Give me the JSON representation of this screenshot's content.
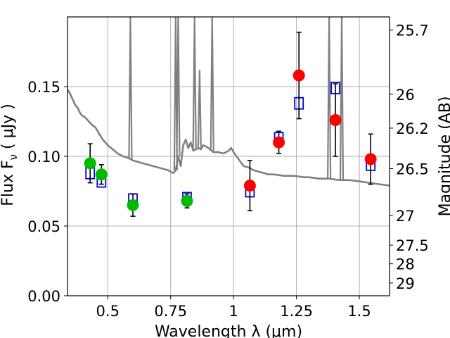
{
  "chart_data": {
    "type": "scatter",
    "title": "",
    "xlabel": "Wavelength  λ (μm)",
    "ylabel": "Flux  F",
    "ylabel_sub": "ν",
    "ylabel_unit": " ( μJy )",
    "y2label": "Magnitude (AB)",
    "xlim": [
      0.34,
      1.62
    ],
    "ylim": [
      0.0,
      0.2
    ],
    "grid": true,
    "x_ticks": [
      {
        "value": 0.5,
        "label": "0.5"
      },
      {
        "value": 0.75,
        "label": "0.75"
      },
      {
        "value": 1.0,
        "label": "1"
      },
      {
        "value": 1.25,
        "label": "1.25"
      },
      {
        "value": 1.5,
        "label": "1.5"
      }
    ],
    "y_ticks": [
      {
        "value": 0.0,
        "label": "0.00"
      },
      {
        "value": 0.05,
        "label": "0.05"
      },
      {
        "value": 0.1,
        "label": "0.10"
      },
      {
        "value": 0.15,
        "label": "0.15"
      }
    ],
    "y2_ticks": [
      {
        "value": 25.7,
        "label": "25.7"
      },
      {
        "value": 26.0,
        "label": "26"
      },
      {
        "value": 26.2,
        "label": "26.2"
      },
      {
        "value": 26.5,
        "label": "26.5"
      },
      {
        "value": 27.0,
        "label": "27"
      },
      {
        "value": 27.5,
        "label": "27.5"
      },
      {
        "value": 28.0,
        "label": "28"
      },
      {
        "value": 29.0,
        "label": "29"
      }
    ],
    "colors": {
      "template": "#808080",
      "model": "#0000dd",
      "optical": "#00bb00",
      "nir": "#ff0000",
      "errorbar": "#000000",
      "grid": "#b0b0b0"
    },
    "series": [
      {
        "kind": "template-sed",
        "points": [
          [
            0.34,
            0.148
          ],
          [
            0.35,
            0.145
          ],
          [
            0.36,
            0.141
          ],
          [
            0.37,
            0.137
          ],
          [
            0.38,
            0.135
          ],
          [
            0.39,
            0.131
          ],
          [
            0.4,
            0.129
          ],
          [
            0.41,
            0.128
          ],
          [
            0.42,
            0.126
          ],
          [
            0.43,
            0.124
          ],
          [
            0.44,
            0.122
          ],
          [
            0.45,
            0.121
          ],
          [
            0.46,
            0.118
          ],
          [
            0.47,
            0.115
          ],
          [
            0.48,
            0.112
          ],
          [
            0.5,
            0.108
          ],
          [
            0.52,
            0.105
          ],
          [
            0.54,
            0.102
          ],
          [
            0.56,
            0.1
          ],
          [
            0.58,
            0.099
          ],
          [
            0.6,
            0.097
          ],
          [
            0.62,
            0.096
          ],
          [
            0.64,
            0.095
          ],
          [
            0.66,
            0.094
          ],
          [
            0.68,
            0.093
          ],
          [
            0.7,
            0.092
          ],
          [
            0.72,
            0.091
          ],
          [
            0.74,
            0.09
          ],
          [
            0.76,
            0.088
          ],
          [
            0.77,
            0.09
          ],
          [
            0.78,
            0.1
          ],
          [
            0.79,
            0.093
          ],
          [
            0.8,
            0.108
          ],
          [
            0.81,
            0.112
          ],
          [
            0.82,
            0.106
          ],
          [
            0.83,
            0.11
          ],
          [
            0.84,
            0.104
          ],
          [
            0.86,
            0.106
          ],
          [
            0.87,
            0.105
          ],
          [
            0.88,
            0.108
          ],
          [
            0.89,
            0.107
          ],
          [
            0.9,
            0.106
          ],
          [
            0.92,
            0.103
          ],
          [
            0.94,
            0.103
          ],
          [
            0.96,
            0.102
          ],
          [
            0.98,
            0.104
          ],
          [
            0.99,
            0.106
          ],
          [
            1.0,
            0.103
          ],
          [
            1.02,
            0.098
          ],
          [
            1.04,
            0.093
          ],
          [
            1.06,
            0.092
          ],
          [
            1.08,
            0.09
          ],
          [
            1.1,
            0.089
          ],
          [
            1.12,
            0.088
          ],
          [
            1.14,
            0.087
          ],
          [
            1.16,
            0.087
          ],
          [
            1.2,
            0.086
          ],
          [
            1.24,
            0.086
          ],
          [
            1.28,
            0.085
          ],
          [
            1.3,
            0.085
          ],
          [
            1.34,
            0.084
          ],
          [
            1.38,
            0.084
          ],
          [
            1.42,
            0.083
          ],
          [
            1.46,
            0.083
          ],
          [
            1.5,
            0.082
          ],
          [
            1.54,
            0.081
          ],
          [
            1.58,
            0.08
          ],
          [
            1.62,
            0.079
          ]
        ],
        "spikes": [
          {
            "x": 0.59,
            "y": 0.2
          },
          {
            "x": 0.77,
            "y": 0.2
          },
          {
            "x": 0.78,
            "y": 0.2
          },
          {
            "x": 0.845,
            "y": 0.2
          },
          {
            "x": 0.865,
            "y": 0.162
          },
          {
            "x": 0.915,
            "y": 0.2
          },
          {
            "x": 1.38,
            "y": 0.2
          },
          {
            "x": 1.43,
            "y": 0.2
          }
        ]
      },
      {
        "kind": "model-photometry",
        "marker": "open-square",
        "points": [
          {
            "x": 0.43,
            "y": 0.088
          },
          {
            "x": 0.475,
            "y": 0.082
          },
          {
            "x": 0.6,
            "y": 0.069
          },
          {
            "x": 0.815,
            "y": 0.07
          },
          {
            "x": 1.065,
            "y": 0.075
          },
          {
            "x": 1.18,
            "y": 0.113
          },
          {
            "x": 1.26,
            "y": 0.138
          },
          {
            "x": 1.405,
            "y": 0.149
          },
          {
            "x": 1.545,
            "y": 0.094
          }
        ]
      },
      {
        "kind": "observed-optical",
        "marker": "filled-circle",
        "points": [
          {
            "x": 0.43,
            "y": 0.095,
            "err": 0.014
          },
          {
            "x": 0.475,
            "y": 0.087,
            "err": 0.007
          },
          {
            "x": 0.6,
            "y": 0.065,
            "err": 0.008
          },
          {
            "x": 0.815,
            "y": 0.068,
            "err": 0.005
          }
        ]
      },
      {
        "kind": "observed-nir",
        "marker": "filled-circle",
        "points": [
          {
            "x": 1.065,
            "y": 0.079,
            "err": 0.018
          },
          {
            "x": 1.18,
            "y": 0.11,
            "err": 0.008
          },
          {
            "x": 1.26,
            "y": 0.158,
            "err": 0.031
          },
          {
            "x": 1.405,
            "y": 0.126,
            "err": 0.026
          },
          {
            "x": 1.545,
            "y": 0.098,
            "err": 0.018
          }
        ]
      }
    ]
  }
}
